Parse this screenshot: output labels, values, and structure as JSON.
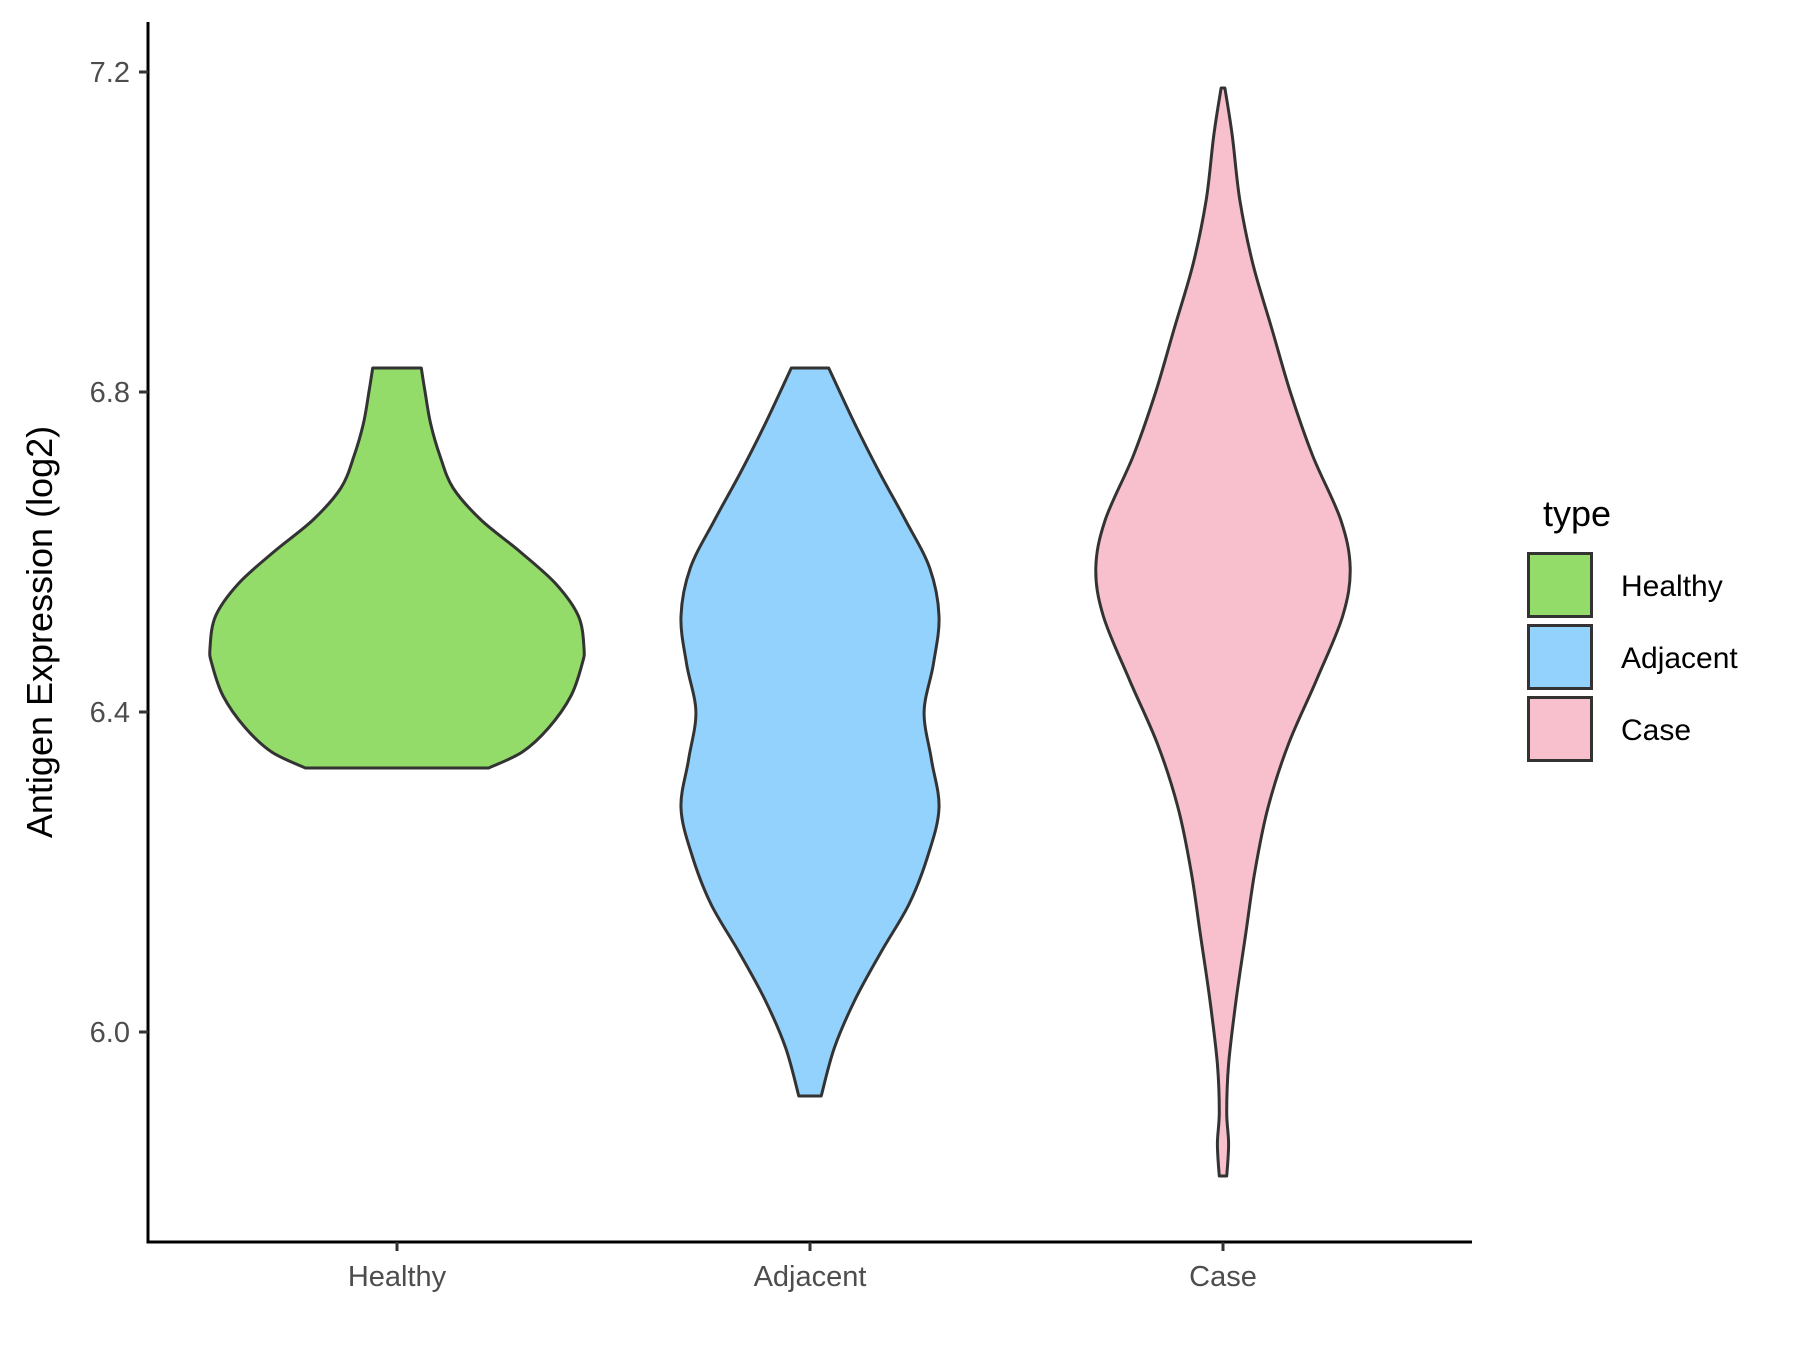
{
  "chart_data": {
    "type": "violin",
    "title": "",
    "xlabel": "",
    "ylabel": "Antigen Expression (log2)",
    "ylim": [
      5.74,
      7.26
    ],
    "yticks": [
      "6.0",
      "6.4",
      "6.8",
      "7.2"
    ],
    "categories": [
      "Healthy",
      "Adjacent",
      "Case"
    ],
    "legend": {
      "title": "type",
      "position": "right",
      "entries": [
        "Healthy",
        "Adjacent",
        "Case"
      ]
    },
    "grid": false,
    "series": [
      {
        "name": "Healthy",
        "color": "#93dc6a",
        "min": 6.33,
        "max": 6.83,
        "density_profile": [
          [
            6.33,
            0.49
          ],
          [
            6.35,
            0.67
          ],
          [
            6.38,
            0.81
          ],
          [
            6.42,
            0.93
          ],
          [
            6.46,
            0.99
          ],
          [
            6.48,
            1.0
          ],
          [
            6.52,
            0.97
          ],
          [
            6.56,
            0.85
          ],
          [
            6.6,
            0.66
          ],
          [
            6.64,
            0.45
          ],
          [
            6.68,
            0.3
          ],
          [
            6.72,
            0.23
          ],
          [
            6.76,
            0.18
          ],
          [
            6.8,
            0.15
          ],
          [
            6.83,
            0.13
          ]
        ]
      },
      {
        "name": "Adjacent",
        "color": "#93d2fd",
        "min": 5.92,
        "max": 6.83,
        "density_profile": [
          [
            5.92,
            0.06
          ],
          [
            5.98,
            0.13
          ],
          [
            6.04,
            0.24
          ],
          [
            6.1,
            0.38
          ],
          [
            6.16,
            0.53
          ],
          [
            6.22,
            0.63
          ],
          [
            6.28,
            0.69
          ],
          [
            6.34,
            0.65
          ],
          [
            6.4,
            0.61
          ],
          [
            6.46,
            0.66
          ],
          [
            6.52,
            0.69
          ],
          [
            6.58,
            0.64
          ],
          [
            6.64,
            0.51
          ],
          [
            6.7,
            0.37
          ],
          [
            6.76,
            0.24
          ],
          [
            6.83,
            0.1
          ]
        ]
      },
      {
        "name": "Case",
        "color": "#f7c0cc",
        "min": 5.82,
        "max": 7.18,
        "density_profile": [
          [
            5.82,
            0.02
          ],
          [
            5.86,
            0.03
          ],
          [
            5.9,
            0.02
          ],
          [
            5.96,
            0.03
          ],
          [
            6.04,
            0.07
          ],
          [
            6.12,
            0.12
          ],
          [
            6.2,
            0.17
          ],
          [
            6.28,
            0.24
          ],
          [
            6.36,
            0.35
          ],
          [
            6.44,
            0.5
          ],
          [
            6.52,
            0.64
          ],
          [
            6.58,
            0.68
          ],
          [
            6.64,
            0.63
          ],
          [
            6.72,
            0.48
          ],
          [
            6.8,
            0.36
          ],
          [
            6.88,
            0.26
          ],
          [
            6.96,
            0.16
          ],
          [
            7.04,
            0.09
          ],
          [
            7.12,
            0.05
          ],
          [
            7.18,
            0.01
          ]
        ]
      }
    ]
  }
}
